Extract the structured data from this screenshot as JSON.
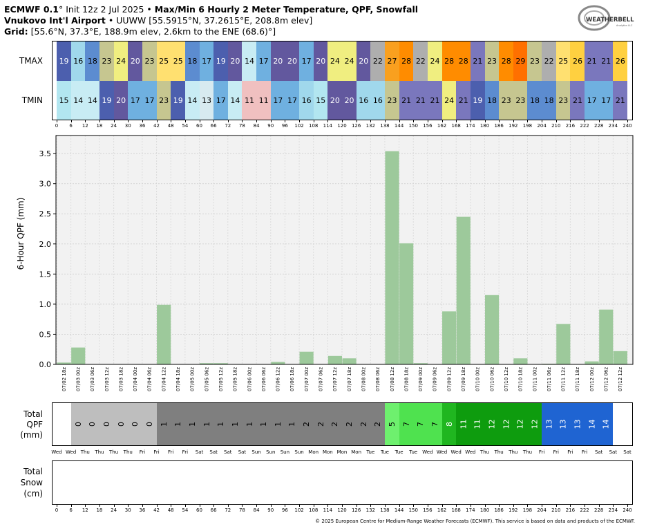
{
  "header": {
    "model": "ECMWF 0.1",
    "deg": "°",
    "init": "Init 12z 2 Jul 2025",
    "bullet": "•",
    "product": "Max/Min 6 Hourly 2 Meter Temperature,  QPF,  Snowfall",
    "station_name": "Vnukovo Int'l Airport",
    "station_info": "UUWW [55.5915°N, 37.2615°E, 208.8m elev]",
    "grid_label": "Grid:",
    "grid_info": "[55.6°N, 37.3°E, 188.9m elev, 2.6km to the ENE (68.6)°]"
  },
  "logo": {
    "text": "WEATHERBELL",
    "sub": "Analytics LLC"
  },
  "labels": {
    "tmax": "TMAX",
    "tmin": "TMIN",
    "total_qpf": [
      "Total",
      "QPF",
      "(mm)"
    ],
    "total_snow": [
      "Total",
      "Snow",
      "(cm)"
    ]
  },
  "hours": [
    0,
    6,
    12,
    18,
    24,
    30,
    36,
    42,
    48,
    54,
    60,
    66,
    72,
    78,
    84,
    90,
    96,
    102,
    108,
    114,
    120,
    126,
    132,
    138,
    144,
    150,
    156,
    162,
    168,
    174,
    180,
    186,
    192,
    198,
    204,
    210,
    216,
    222,
    228,
    234,
    240
  ],
  "tmax": [
    19,
    16,
    18,
    23,
    24,
    20,
    23,
    25,
    25,
    18,
    17,
    19,
    20,
    14,
    17,
    20,
    20,
    17,
    20,
    24,
    24,
    20,
    22,
    27,
    28,
    22,
    24,
    28,
    28,
    21,
    23,
    28,
    29,
    23,
    22,
    25,
    26,
    21,
    21,
    26
  ],
  "tmin": [
    15,
    14,
    14,
    19,
    20,
    17,
    17,
    23,
    19,
    14,
    13,
    17,
    14,
    11,
    11,
    17,
    17,
    16,
    15,
    20,
    20,
    16,
    16,
    23,
    21,
    21,
    21,
    24,
    21,
    19,
    18,
    23,
    23,
    18,
    18,
    23,
    21,
    17,
    17,
    21
  ],
  "temp_colors": {
    "11": "#f0c0c0",
    "13": "#d8eaf0",
    "14": "#c8ecf4",
    "15": "#b2e6f0",
    "16": "#a0d8ec",
    "17": "#6fb0e0",
    "18": "#5c8cd0",
    "19": "#4c5fae",
    "20": "#62589e",
    "21": "#7a77bd",
    "22": "#aeaeae",
    "23": "#c6c690",
    "24": "#f0ee80",
    "25": "#ffe070",
    "26": "#ffd040",
    "27": "#f9a01f",
    "28": "#ff8c00",
    "29": "#ff7000"
  },
  "chart_data": {
    "type": "bar",
    "title": "",
    "ylabel": "6-Hour QPF (mm)",
    "xlabel": "",
    "ylim": [
      0,
      3.8
    ],
    "yticks": [
      0.0,
      0.5,
      1.0,
      1.5,
      2.0,
      2.5,
      3.0,
      3.5
    ],
    "grid": true,
    "bar_color": "#9dc99b",
    "categories": [
      "07/02 18z",
      "07/03 00z",
      "07/03 06z",
      "07/03 12z",
      "07/03 18z",
      "07/04 00z",
      "07/04 06z",
      "07/04 12z",
      "07/04 18z",
      "07/05 00z",
      "07/05 06z",
      "07/05 12z",
      "07/05 18z",
      "07/06 00z",
      "07/06 06z",
      "07/06 12z",
      "07/06 18z",
      "07/07 00z",
      "07/07 06z",
      "07/07 12z",
      "07/07 18z",
      "07/08 00z",
      "07/08 06z",
      "07/08 12z",
      "07/08 18z",
      "07/09 00z",
      "07/09 06z",
      "07/09 12z",
      "07/09 18z",
      "07/10 00z",
      "07/10 06z",
      "07/10 12z",
      "07/10 18z",
      "07/11 00z",
      "07/11 06z",
      "07/11 12z",
      "07/11 18z",
      "07/12 00z",
      "07/12 06z",
      "07/12 12z"
    ],
    "values": [
      0.03,
      0.28,
      0,
      0,
      0,
      0,
      0,
      0.99,
      0,
      0,
      0.02,
      0.02,
      0,
      0,
      0,
      0.04,
      0,
      0.21,
      0,
      0.14,
      0.1,
      0,
      0,
      3.54,
      2.01,
      0.02,
      0,
      0.88,
      2.45,
      0,
      1.15,
      0,
      0.1,
      0,
      0.01,
      0.67,
      0,
      0.05,
      0.91,
      0.22
    ]
  },
  "total_qpf": {
    "values": [
      "",
      "0",
      "0",
      "0",
      "0",
      "0",
      "0",
      "1",
      "1",
      "1",
      "1",
      "1",
      "1",
      "1",
      "1",
      "1",
      "1",
      "2",
      "2",
      "2",
      "2",
      "2",
      "2",
      "5",
      "7",
      "7",
      "7",
      "8",
      "11",
      "11",
      "12",
      "12",
      "12",
      "12",
      "13",
      "13",
      "13",
      "14",
      "14",
      ""
    ],
    "colors": [
      "#ffffff",
      "#bebebe",
      "#bebebe",
      "#bebebe",
      "#bebebe",
      "#bebebe",
      "#bebebe",
      "#7f7f7f",
      "#7f7f7f",
      "#7f7f7f",
      "#7f7f7f",
      "#7f7f7f",
      "#7f7f7f",
      "#7f7f7f",
      "#7f7f7f",
      "#7f7f7f",
      "#7f7f7f",
      "#7f7f7f",
      "#7f7f7f",
      "#7f7f7f",
      "#7f7f7f",
      "#7f7f7f",
      "#7f7f7f",
      "#6ef06e",
      "#4fe24f",
      "#4fe24f",
      "#4fe24f",
      "#20b620",
      "#0e9c0e",
      "#0e9c0e",
      "#0e9c0e",
      "#0e9c0e",
      "#0e9c0e",
      "#0e9c0e",
      "#1f64d2",
      "#1f64d2",
      "#1f64d2",
      "#1f64d2",
      "#1f64d2",
      "#ffffff"
    ]
  },
  "weekdays": [
    "Wed",
    "Wed",
    "Thu",
    "Thu",
    "Thu",
    "Thu",
    "Fri",
    "Fri",
    "Fri",
    "Fri",
    "Sat",
    "Sat",
    "Sat",
    "Sat",
    "Sun",
    "Sun",
    "Sun",
    "Sun",
    "Mon",
    "Mon",
    "Mon",
    "Mon",
    "Tue",
    "Tue",
    "Tue",
    "Tue",
    "Wed",
    "Wed",
    "Wed",
    "Wed",
    "Thu",
    "Thu",
    "Thu",
    "Thu",
    "Fri",
    "Fri",
    "Fri",
    "Fri",
    "Sat",
    "Sat",
    "Sat"
  ],
  "footer": "© 2025 European Centre for Medium-Range Weather Forecasts (ECMWF). This service is based on data and products of the ECMWF."
}
